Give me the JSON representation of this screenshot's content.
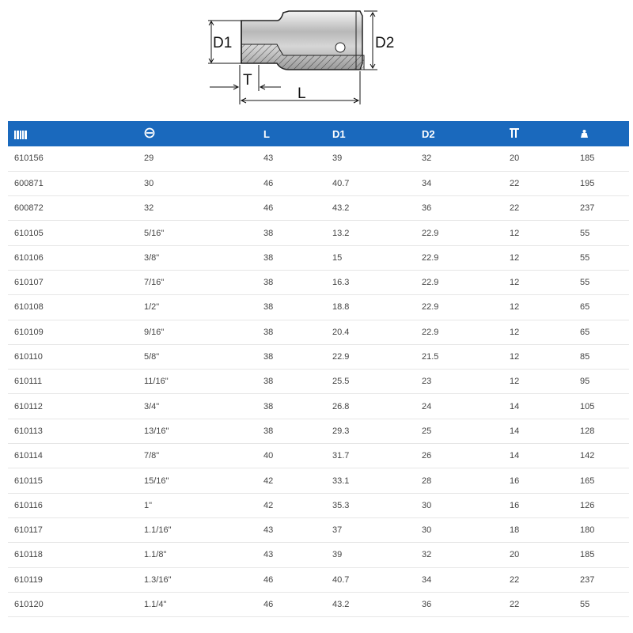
{
  "diagram": {
    "labels": {
      "d1": "D1",
      "d2": "D2",
      "t": "T",
      "l": "L"
    }
  },
  "table": {
    "header_icons": [
      "barcode-icon",
      "hex-size-icon",
      "length-icon",
      "diameter-1-icon",
      "diameter-2-icon",
      "depth-icon",
      "weight-icon"
    ],
    "header_text": {
      "length": "L",
      "d1": "D1",
      "d2": "D2"
    },
    "header_color": "#1a69bd",
    "rows": [
      [
        "610156",
        "29",
        "43",
        "39",
        "32",
        "20",
        "185"
      ],
      [
        "600871",
        "30",
        "46",
        "40.7",
        "34",
        "22",
        "195"
      ],
      [
        "600872",
        "32",
        "46",
        "43.2",
        "36",
        "22",
        "237"
      ],
      [
        "610105",
        "5/16\"",
        "38",
        "13.2",
        "22.9",
        "12",
        "55"
      ],
      [
        "610106",
        "3/8\"",
        "38",
        "15",
        "22.9",
        "12",
        "55"
      ],
      [
        "610107",
        "7/16\"",
        "38",
        "16.3",
        "22.9",
        "12",
        "55"
      ],
      [
        "610108",
        "1/2\"",
        "38",
        "18.8",
        "22.9",
        "12",
        "65"
      ],
      [
        "610109",
        "9/16\"",
        "38",
        "20.4",
        "22.9",
        "12",
        "65"
      ],
      [
        "610110",
        "5/8\"",
        "38",
        "22.9",
        "21.5",
        "12",
        "85"
      ],
      [
        "610111",
        "11/16\"",
        "38",
        "25.5",
        "23",
        "12",
        "95"
      ],
      [
        "610112",
        "3/4\"",
        "38",
        "26.8",
        "24",
        "14",
        "105"
      ],
      [
        "610113",
        "13/16\"",
        "38",
        "29.3",
        "25",
        "14",
        "128"
      ],
      [
        "610114",
        "7/8\"",
        "40",
        "31.7",
        "26",
        "14",
        "142"
      ],
      [
        "610115",
        "15/16\"",
        "42",
        "33.1",
        "28",
        "16",
        "165"
      ],
      [
        "610116",
        "1\"",
        "42",
        "35.3",
        "30",
        "16",
        "126"
      ],
      [
        "610117",
        "1.1/16\"",
        "43",
        "37",
        "30",
        "18",
        "180"
      ],
      [
        "610118",
        "1.1/8\"",
        "43",
        "39",
        "32",
        "20",
        "185"
      ],
      [
        "610119",
        "1.3/16\"",
        "46",
        "40.7",
        "34",
        "22",
        "237"
      ],
      [
        "610120",
        "1.1/4\"",
        "46",
        "43.2",
        "36",
        "22",
        "55"
      ]
    ]
  }
}
